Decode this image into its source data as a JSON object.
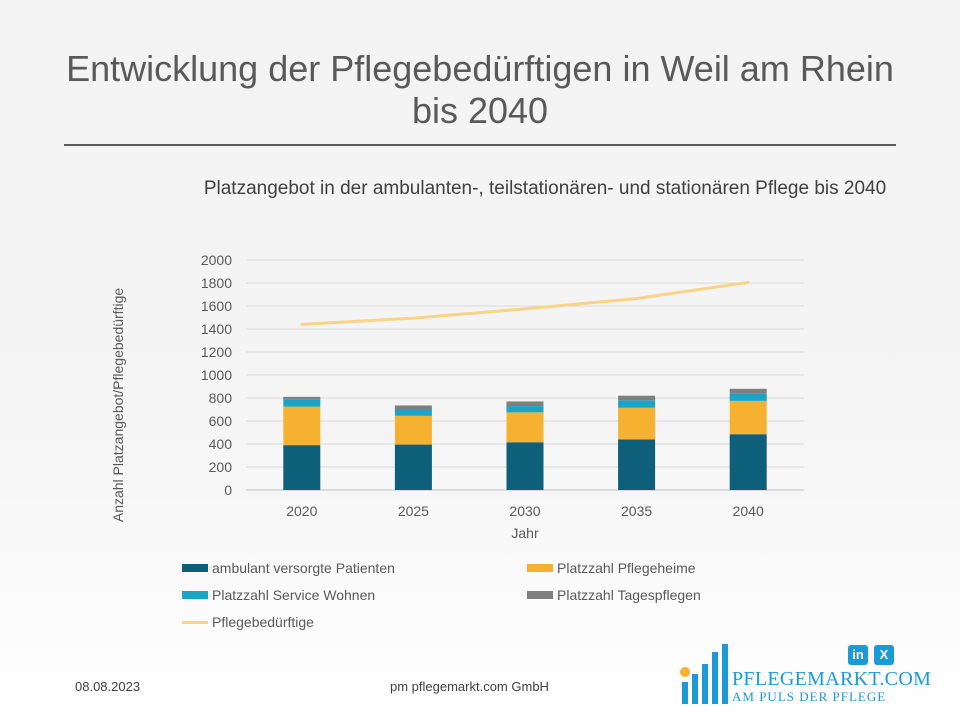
{
  "slide": {
    "title": "Entwicklung der Pflegebedürftigen in Weil am Rhein bis 2040",
    "date": "08.08.2023",
    "company": "pm pflegemarkt.com GmbH"
  },
  "logo": {
    "name": "PFLEGEMARKT.COM",
    "tagline": "AM PULS DER PFLEGE",
    "social_linkedin": "in",
    "social_xing": "X"
  },
  "chart_data": {
    "type": "bar",
    "title": "Platzangebot  in der ambulanten-, teilstationären- und stationären Pflege bis 2040",
    "xlabel": "Jahr",
    "ylabel": "Anzahl Platzangebot/Pflegebedürftige",
    "ylim": [
      0,
      2000
    ],
    "yticks": [
      0,
      200,
      400,
      600,
      800,
      1000,
      1200,
      1400,
      1600,
      1800,
      2000
    ],
    "grid": true,
    "legend_position": "bottom",
    "stacked": true,
    "categories": [
      "2020",
      "2025",
      "2030",
      "2035",
      "2040"
    ],
    "series": [
      {
        "name": "ambulant versorgte Patienten",
        "color": "#0e5f7a",
        "values": [
          390,
          395,
          415,
          440,
          485
        ]
      },
      {
        "name": "Platzzahl Pflegeheime",
        "color": "#f6b130",
        "values": [
          335,
          250,
          260,
          275,
          290
        ]
      },
      {
        "name": "Platzzahl Service Wohnen",
        "color": "#1ba4c8",
        "values": [
          65,
          55,
          55,
          65,
          65
        ]
      },
      {
        "name": "Platzzahl Tagespflegen",
        "color": "#7f7f7f",
        "values": [
          20,
          35,
          40,
          40,
          40
        ]
      }
    ],
    "line_series": {
      "name": "Pflegebedürftige",
      "color": "#f9d386",
      "values": [
        1440,
        1495,
        1575,
        1665,
        1805
      ]
    }
  }
}
